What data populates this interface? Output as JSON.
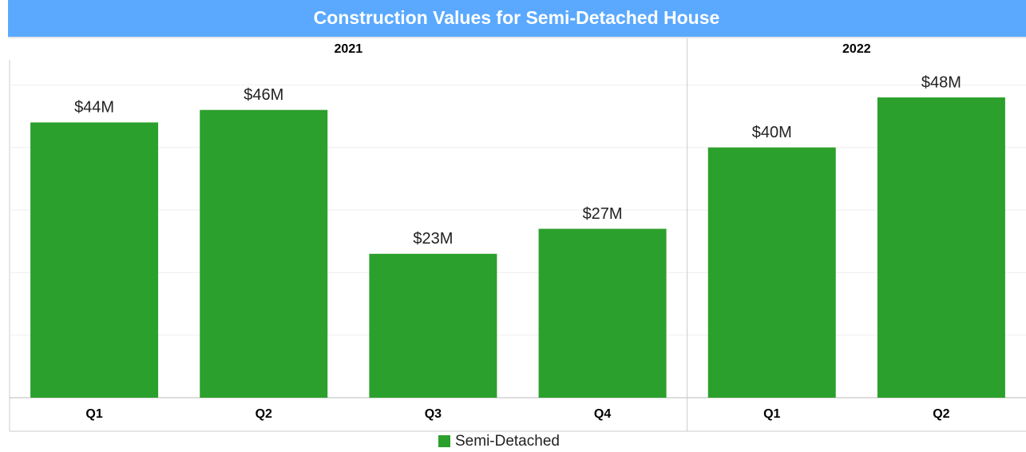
{
  "chart_data": {
    "type": "bar",
    "title": "Construction Values for Semi-Detached House",
    "category_groups": [
      {
        "label": "2021",
        "categories": [
          "Q1",
          "Q2",
          "Q3",
          "Q4"
        ]
      },
      {
        "label": "2022",
        "categories": [
          "Q1",
          "Q2"
        ]
      }
    ],
    "series": [
      {
        "name": "Semi-Detached",
        "color": "#2ca02c",
        "values": [
          44,
          46,
          23,
          27,
          40,
          48
        ],
        "value_labels": [
          "$44M",
          "$46M",
          "$23M",
          "$27M",
          "$40M",
          "$48M"
        ]
      }
    ],
    "ylim": [
      0,
      54
    ],
    "yticks": [
      0,
      10,
      20,
      30,
      40,
      50
    ],
    "grid": true,
    "legend": "bottom"
  }
}
